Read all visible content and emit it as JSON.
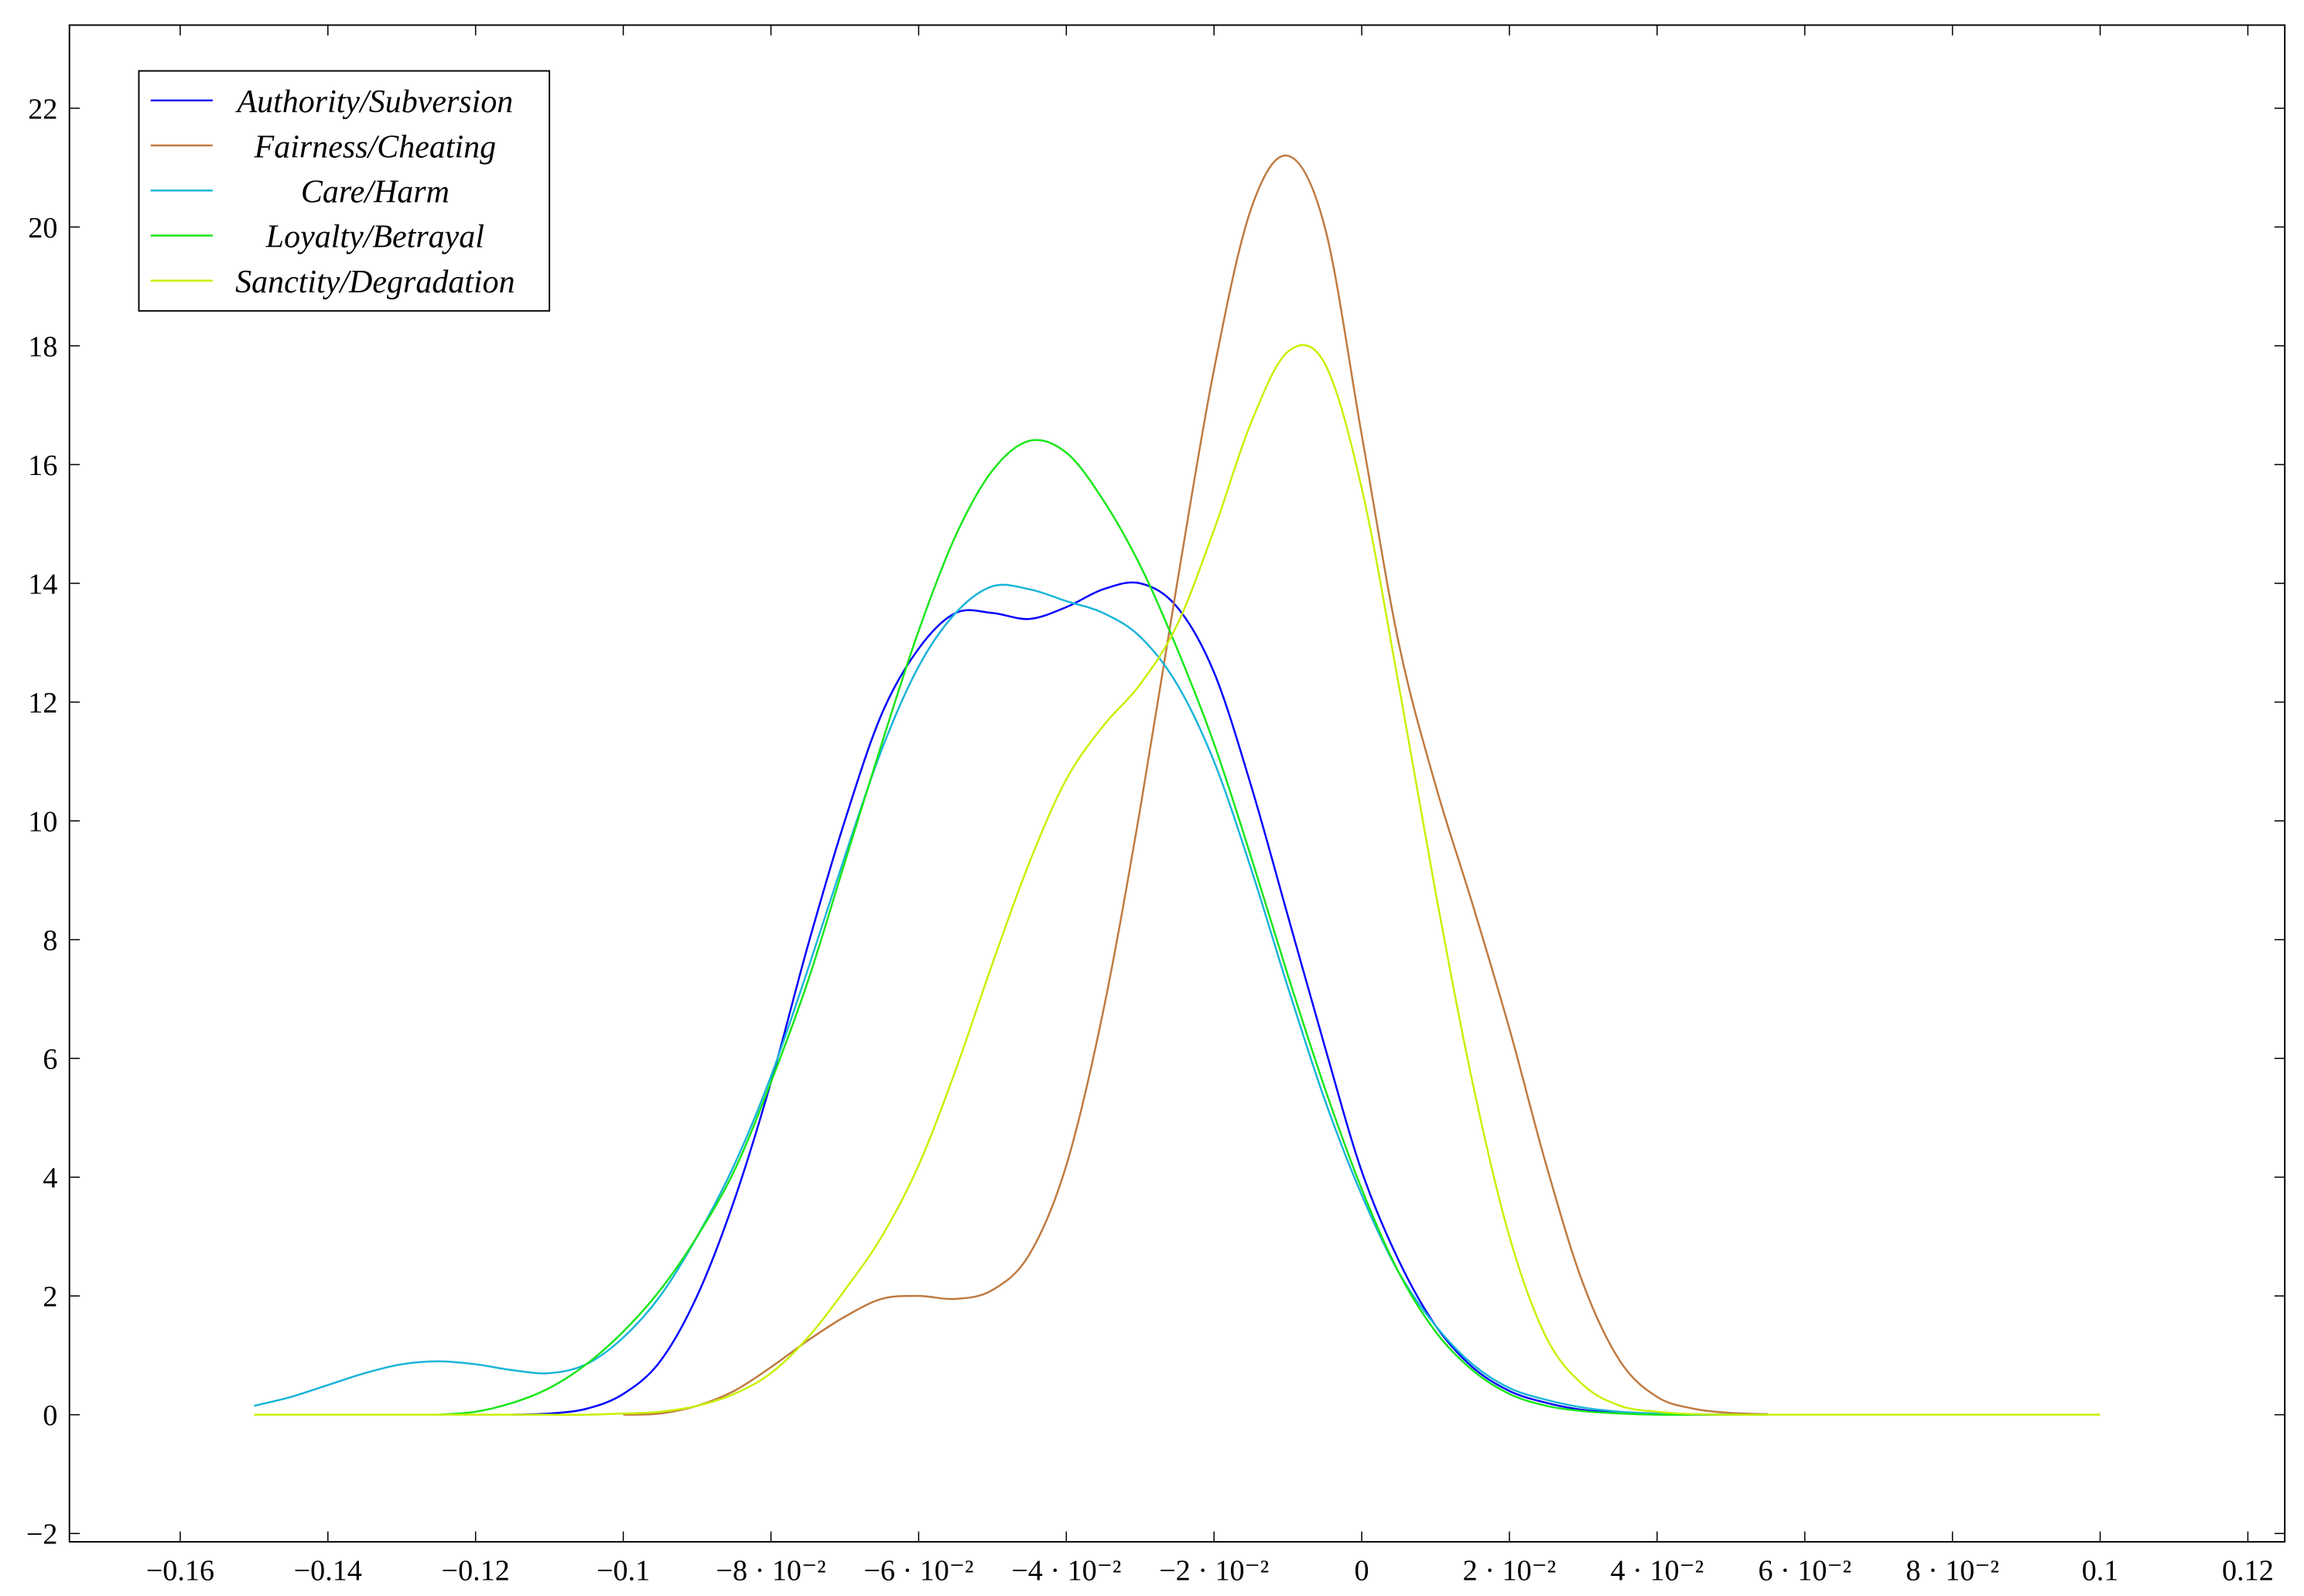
{
  "chart_data": {
    "type": "line",
    "x": [
      -0.15,
      -0.145,
      -0.14,
      -0.135,
      -0.13,
      -0.125,
      -0.12,
      -0.115,
      -0.11,
      -0.105,
      -0.1,
      -0.095,
      -0.09,
      -0.085,
      -0.08,
      -0.075,
      -0.07,
      -0.065,
      -0.06,
      -0.055,
      -0.05,
      -0.045,
      -0.04,
      -0.035,
      -0.03,
      -0.025,
      -0.02,
      -0.015,
      -0.01,
      -0.005,
      0,
      0.005,
      0.01,
      0.015,
      0.02,
      0.025,
      0.03,
      0.035,
      0.04,
      0.045,
      0.05,
      0.055,
      0.06,
      0.065,
      0.07,
      0.075,
      0.08,
      0.085,
      0.09,
      0.095,
      0.1
    ],
    "series": [
      {
        "name": "Authority/Subversion",
        "color": "#0000ff",
        "values": [
          null,
          null,
          null,
          null,
          null,
          null,
          null,
          0,
          0.02,
          0.1,
          0.35,
          0.9,
          2.0,
          3.6,
          5.6,
          7.9,
          10.0,
          11.8,
          12.9,
          13.5,
          13.5,
          13.4,
          13.6,
          13.9,
          14.0,
          13.6,
          12.5,
          10.6,
          8.4,
          6.2,
          4.1,
          2.6,
          1.5,
          0.8,
          0.4,
          0.2,
          0.08,
          0.03,
          0.01,
          0,
          0,
          0,
          null,
          null,
          null,
          null,
          null,
          null,
          null,
          null,
          null
        ]
      },
      {
        "name": "Fairness/Cheating",
        "color": "#bf7a40",
        "values": [
          null,
          null,
          null,
          null,
          null,
          null,
          null,
          null,
          null,
          null,
          0,
          0.02,
          0.15,
          0.4,
          0.8,
          1.25,
          1.65,
          1.95,
          2.0,
          1.95,
          2.1,
          2.7,
          4.2,
          6.8,
          10.2,
          14.0,
          17.6,
          20.3,
          21.2,
          20.0,
          16.5,
          13.0,
          10.6,
          8.6,
          6.5,
          4.2,
          2.2,
          0.9,
          0.3,
          0.1,
          0.03,
          0.01,
          null,
          null,
          null,
          null,
          null,
          null,
          null,
          null,
          null
        ]
      },
      {
        "name": "Care/Harm",
        "color": "#19b4d9",
        "values": [
          0.15,
          0.3,
          0.5,
          0.7,
          0.85,
          0.9,
          0.85,
          0.75,
          0.7,
          0.85,
          1.3,
          2.0,
          3.0,
          4.2,
          5.7,
          7.5,
          9.4,
          11.2,
          12.6,
          13.5,
          13.95,
          13.9,
          13.7,
          13.5,
          13.1,
          12.3,
          11.0,
          9.2,
          7.2,
          5.3,
          3.7,
          2.4,
          1.5,
          0.85,
          0.45,
          0.25,
          0.12,
          0.05,
          0.02,
          0.01,
          0,
          0,
          null,
          null,
          null,
          null,
          null,
          null,
          null,
          null,
          null
        ]
      },
      {
        "name": "Loyalty/Betrayal",
        "color": "#19e619",
        "values": [
          null,
          null,
          null,
          null,
          null,
          0,
          0.05,
          0.2,
          0.45,
          0.85,
          1.4,
          2.1,
          3.0,
          4.1,
          5.6,
          7.3,
          9.3,
          11.3,
          13.2,
          14.8,
          15.9,
          16.4,
          16.2,
          15.4,
          14.3,
          12.9,
          11.3,
          9.4,
          7.4,
          5.5,
          3.8,
          2.4,
          1.4,
          0.75,
          0.35,
          0.15,
          0.06,
          0.02,
          0,
          0,
          0,
          0,
          null,
          null,
          null,
          null,
          null,
          null,
          null,
          null,
          null
        ]
      },
      {
        "name": "Sanctity/Degradation",
        "color": "#c8f000",
        "values": [
          0,
          0,
          0,
          0,
          0,
          0,
          0,
          0,
          0,
          0,
          0.02,
          0.05,
          0.15,
          0.35,
          0.7,
          1.3,
          2.1,
          3.0,
          4.2,
          5.8,
          7.6,
          9.3,
          10.7,
          11.6,
          12.3,
          13.3,
          14.9,
          16.7,
          17.9,
          17.7,
          15.6,
          12.3,
          8.8,
          5.6,
          3.0,
          1.3,
          0.5,
          0.15,
          0.05,
          0.01,
          0,
          0,
          0,
          0,
          0,
          0,
          0,
          0,
          0,
          0,
          0
        ]
      }
    ],
    "xlim": [
      -0.175,
      0.125
    ],
    "ylim": [
      -2.14,
      23.4
    ],
    "xticks": [
      {
        "value": -0.16,
        "label": "−0.16"
      },
      {
        "value": -0.14,
        "label": "−0.14"
      },
      {
        "value": -0.12,
        "label": "−0.12"
      },
      {
        "value": -0.1,
        "label": "−0.1"
      },
      {
        "value": -0.08,
        "label": "−8 · 10⁻²"
      },
      {
        "value": -0.06,
        "label": "−6 · 10⁻²"
      },
      {
        "value": -0.04,
        "label": "−4 · 10⁻²"
      },
      {
        "value": -0.02,
        "label": "−2 · 10⁻²"
      },
      0,
      {
        "value": 0.02,
        "label": "2 · 10⁻²"
      },
      {
        "value": 0.04,
        "label": "4 · 10⁻²"
      },
      {
        "value": 0.06,
        "label": "6 · 10⁻²"
      },
      {
        "value": 0.08,
        "label": "8 · 10⁻²"
      },
      0.1,
      0.12
    ],
    "yticks": [
      {
        "value": -2,
        "label": "−2"
      },
      0,
      2,
      4,
      6,
      8,
      10,
      12,
      14,
      16,
      18,
      20,
      22
    ],
    "legend": "upper left",
    "grid": false
  }
}
